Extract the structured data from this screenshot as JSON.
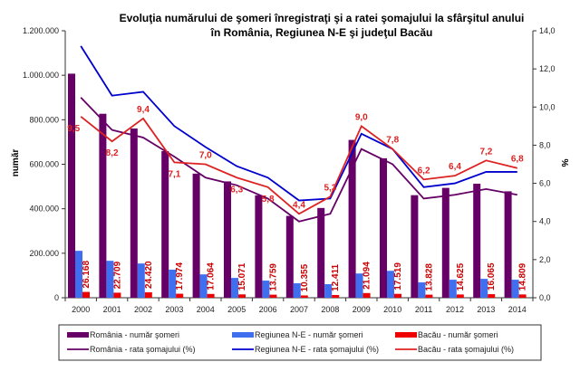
{
  "chart_data": {
    "type": "bar+line",
    "title_line1": "Evoluţia numărului de şomeri înregistraţi şi a ratei şomajului la sfârşitul anului",
    "title_line2": "în România, Regiunea N-E şi judeţul Bacău",
    "ylabel_left": "număr",
    "ylabel_right": "%",
    "ylim_left": [
      0,
      1200000
    ],
    "ylim_right": [
      0,
      14
    ],
    "yticks_left": [
      "0",
      "200.000",
      "400.000",
      "600.000",
      "800.000",
      "1.000.000",
      "1.200.000"
    ],
    "yticks_right": [
      "0,0",
      "2,0",
      "4,0",
      "6,0",
      "8,0",
      "10,0",
      "12,0",
      "14,0"
    ],
    "categories": [
      "2000",
      "2001",
      "2002",
      "2003",
      "2004",
      "2005",
      "2006",
      "2007",
      "2008",
      "2009",
      "2010",
      "2011",
      "2012",
      "2013",
      "2014"
    ],
    "bar_series": [
      {
        "name": "România - număr şomeri",
        "color": "#660066",
        "values": [
          1007131,
          826932,
          760636,
          658891,
          557882,
          522967,
          460495,
          367838,
          403441,
          709383,
          626960,
          461013,
          493775,
          512333,
          478338
        ]
      },
      {
        "name": "Regiunea N-E - număr şomeri",
        "color": "#3f6fef",
        "values": [
          211000,
          166000,
          154000,
          126000,
          105000,
          89000,
          77000,
          65000,
          61000,
          109000,
          121000,
          69000,
          81000,
          85000,
          81000
        ]
      },
      {
        "name": "Bacău - număr şomeri",
        "color": "#ee0000",
        "values": [
          26168,
          22709,
          24420,
          17974,
          17064,
          15071,
          13759,
          10355,
          12411,
          21094,
          17519,
          13828,
          14625,
          16065,
          14809
        ],
        "labels": [
          "26.168",
          "22.709",
          "24.420",
          "17.974",
          "17.064",
          "15.071",
          "13.759",
          "10.355",
          "12.411",
          "21.094",
          "17.519",
          "13.828",
          "14.625",
          "16.065",
          "14.809"
        ]
      }
    ],
    "line_series": [
      {
        "name": "România -  rata şomajului (%)",
        "color": "#660066",
        "values": [
          10.5,
          8.8,
          8.4,
          7.4,
          6.3,
          5.9,
          5.2,
          4.0,
          4.4,
          7.8,
          7.0,
          5.2,
          5.4,
          5.7,
          5.4
        ]
      },
      {
        "name": "Regiunea N-E -  rata şomajului (%)",
        "color": "#0000cc",
        "values": [
          13.2,
          10.6,
          10.8,
          9.0,
          7.9,
          6.9,
          6.3,
          5.1,
          5.2,
          8.6,
          7.8,
          5.8,
          6.0,
          6.6,
          6.6
        ]
      },
      {
        "name": "Bacău -  rata şomajului (%)",
        "color": "#dd2222",
        "values": [
          9.5,
          8.2,
          9.4,
          7.1,
          7.0,
          6.3,
          5.8,
          4.4,
          5.3,
          9.0,
          7.8,
          6.2,
          6.4,
          7.2,
          6.8
        ],
        "labels": [
          "9,5",
          "8,2",
          "9,4",
          "7,1",
          "7,0",
          "6,3",
          "5,8",
          "4,4",
          "5,3",
          "9,0",
          "7,8",
          "6,2",
          "6,4",
          "7,2",
          "6,8"
        ]
      }
    ],
    "legend_placement": "bottom",
    "grid": false
  }
}
